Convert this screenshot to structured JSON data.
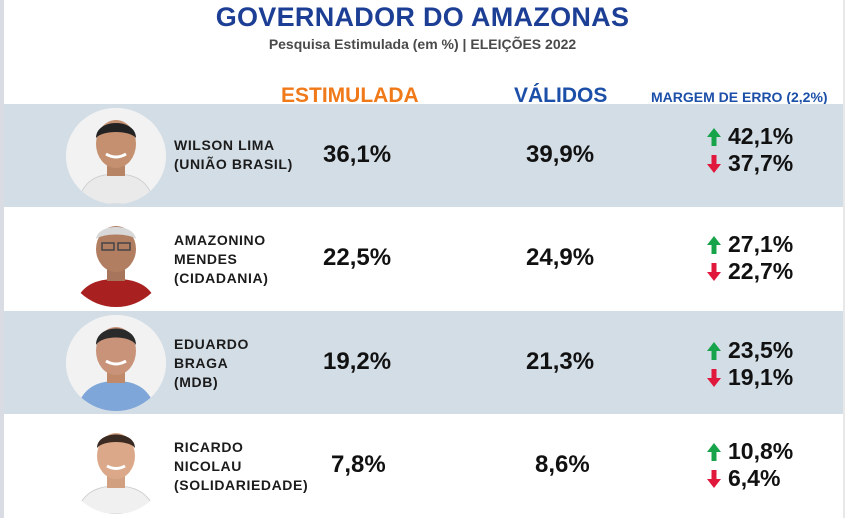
{
  "header": {
    "title": "GOVERNADOR DO AMAZONAS",
    "subtitle": "Pesquisa Estimulada (em %) | ELEIÇÕES 2022"
  },
  "columns": {
    "estimulada": "ESTIMULADA",
    "validos": "VÁLIDOS",
    "margem": "MARGEM DE ERRO (2,2%)"
  },
  "colors": {
    "title": "#1c3f95",
    "estimulada_header": "#f07a1a",
    "validos_header": "#1c4fa8",
    "row_shade": "#d3dde5",
    "arrow_up": "#17a34a",
    "arrow_down": "#e0183c"
  },
  "candidates": [
    {
      "name": "WILSON LIMA\n(UNIÃO BRASIL)",
      "estimulada": "36,1%",
      "validos": "39,9%",
      "margem_up": "42,1%",
      "margem_down": "37,7%"
    },
    {
      "name": "AMAZONINO\nMENDES\n(CIDADANIA)",
      "estimulada": "22,5%",
      "validos": "24,9%",
      "margem_up": "27,1%",
      "margem_down": "22,7%"
    },
    {
      "name": "EDUARDO\nBRAGA\n(MDB)",
      "estimulada": "19,2%",
      "validos": "21,3%",
      "margem_up": "23,5%",
      "margem_down": "19,1%"
    },
    {
      "name": "RICARDO\nNICOLAU\n(SOLIDARIEDADE)",
      "estimulada": "7,8%",
      "validos": "8,6%",
      "margem_up": "10,8%",
      "margem_down": "6,4%"
    }
  ],
  "chart_data": {
    "type": "table",
    "title": "GOVERNADOR DO AMAZONAS",
    "subtitle": "Pesquisa Estimulada (em %) | ELEIÇÕES 2022",
    "columns": [
      "ESTIMULADA",
      "VÁLIDOS",
      "MARGEM DE ERRO (2,2%)"
    ],
    "rows": [
      {
        "candidate": "WILSON LIMA (UNIÃO BRASIL)",
        "estimulada": 36.1,
        "validos": 39.9,
        "margem_max": 42.1,
        "margem_min": 37.7
      },
      {
        "candidate": "AMAZONINO MENDES (CIDADANIA)",
        "estimulada": 22.5,
        "validos": 24.9,
        "margem_max": 27.1,
        "margem_min": 22.7
      },
      {
        "candidate": "EDUARDO BRAGA (MDB)",
        "estimulada": 19.2,
        "validos": 21.3,
        "margem_max": 23.5,
        "margem_min": 19.1
      },
      {
        "candidate": "RICARDO NICOLAU (SOLIDARIEDADE)",
        "estimulada": 7.8,
        "validos": 8.6,
        "margem_max": 10.8,
        "margem_min": 6.4
      }
    ]
  }
}
